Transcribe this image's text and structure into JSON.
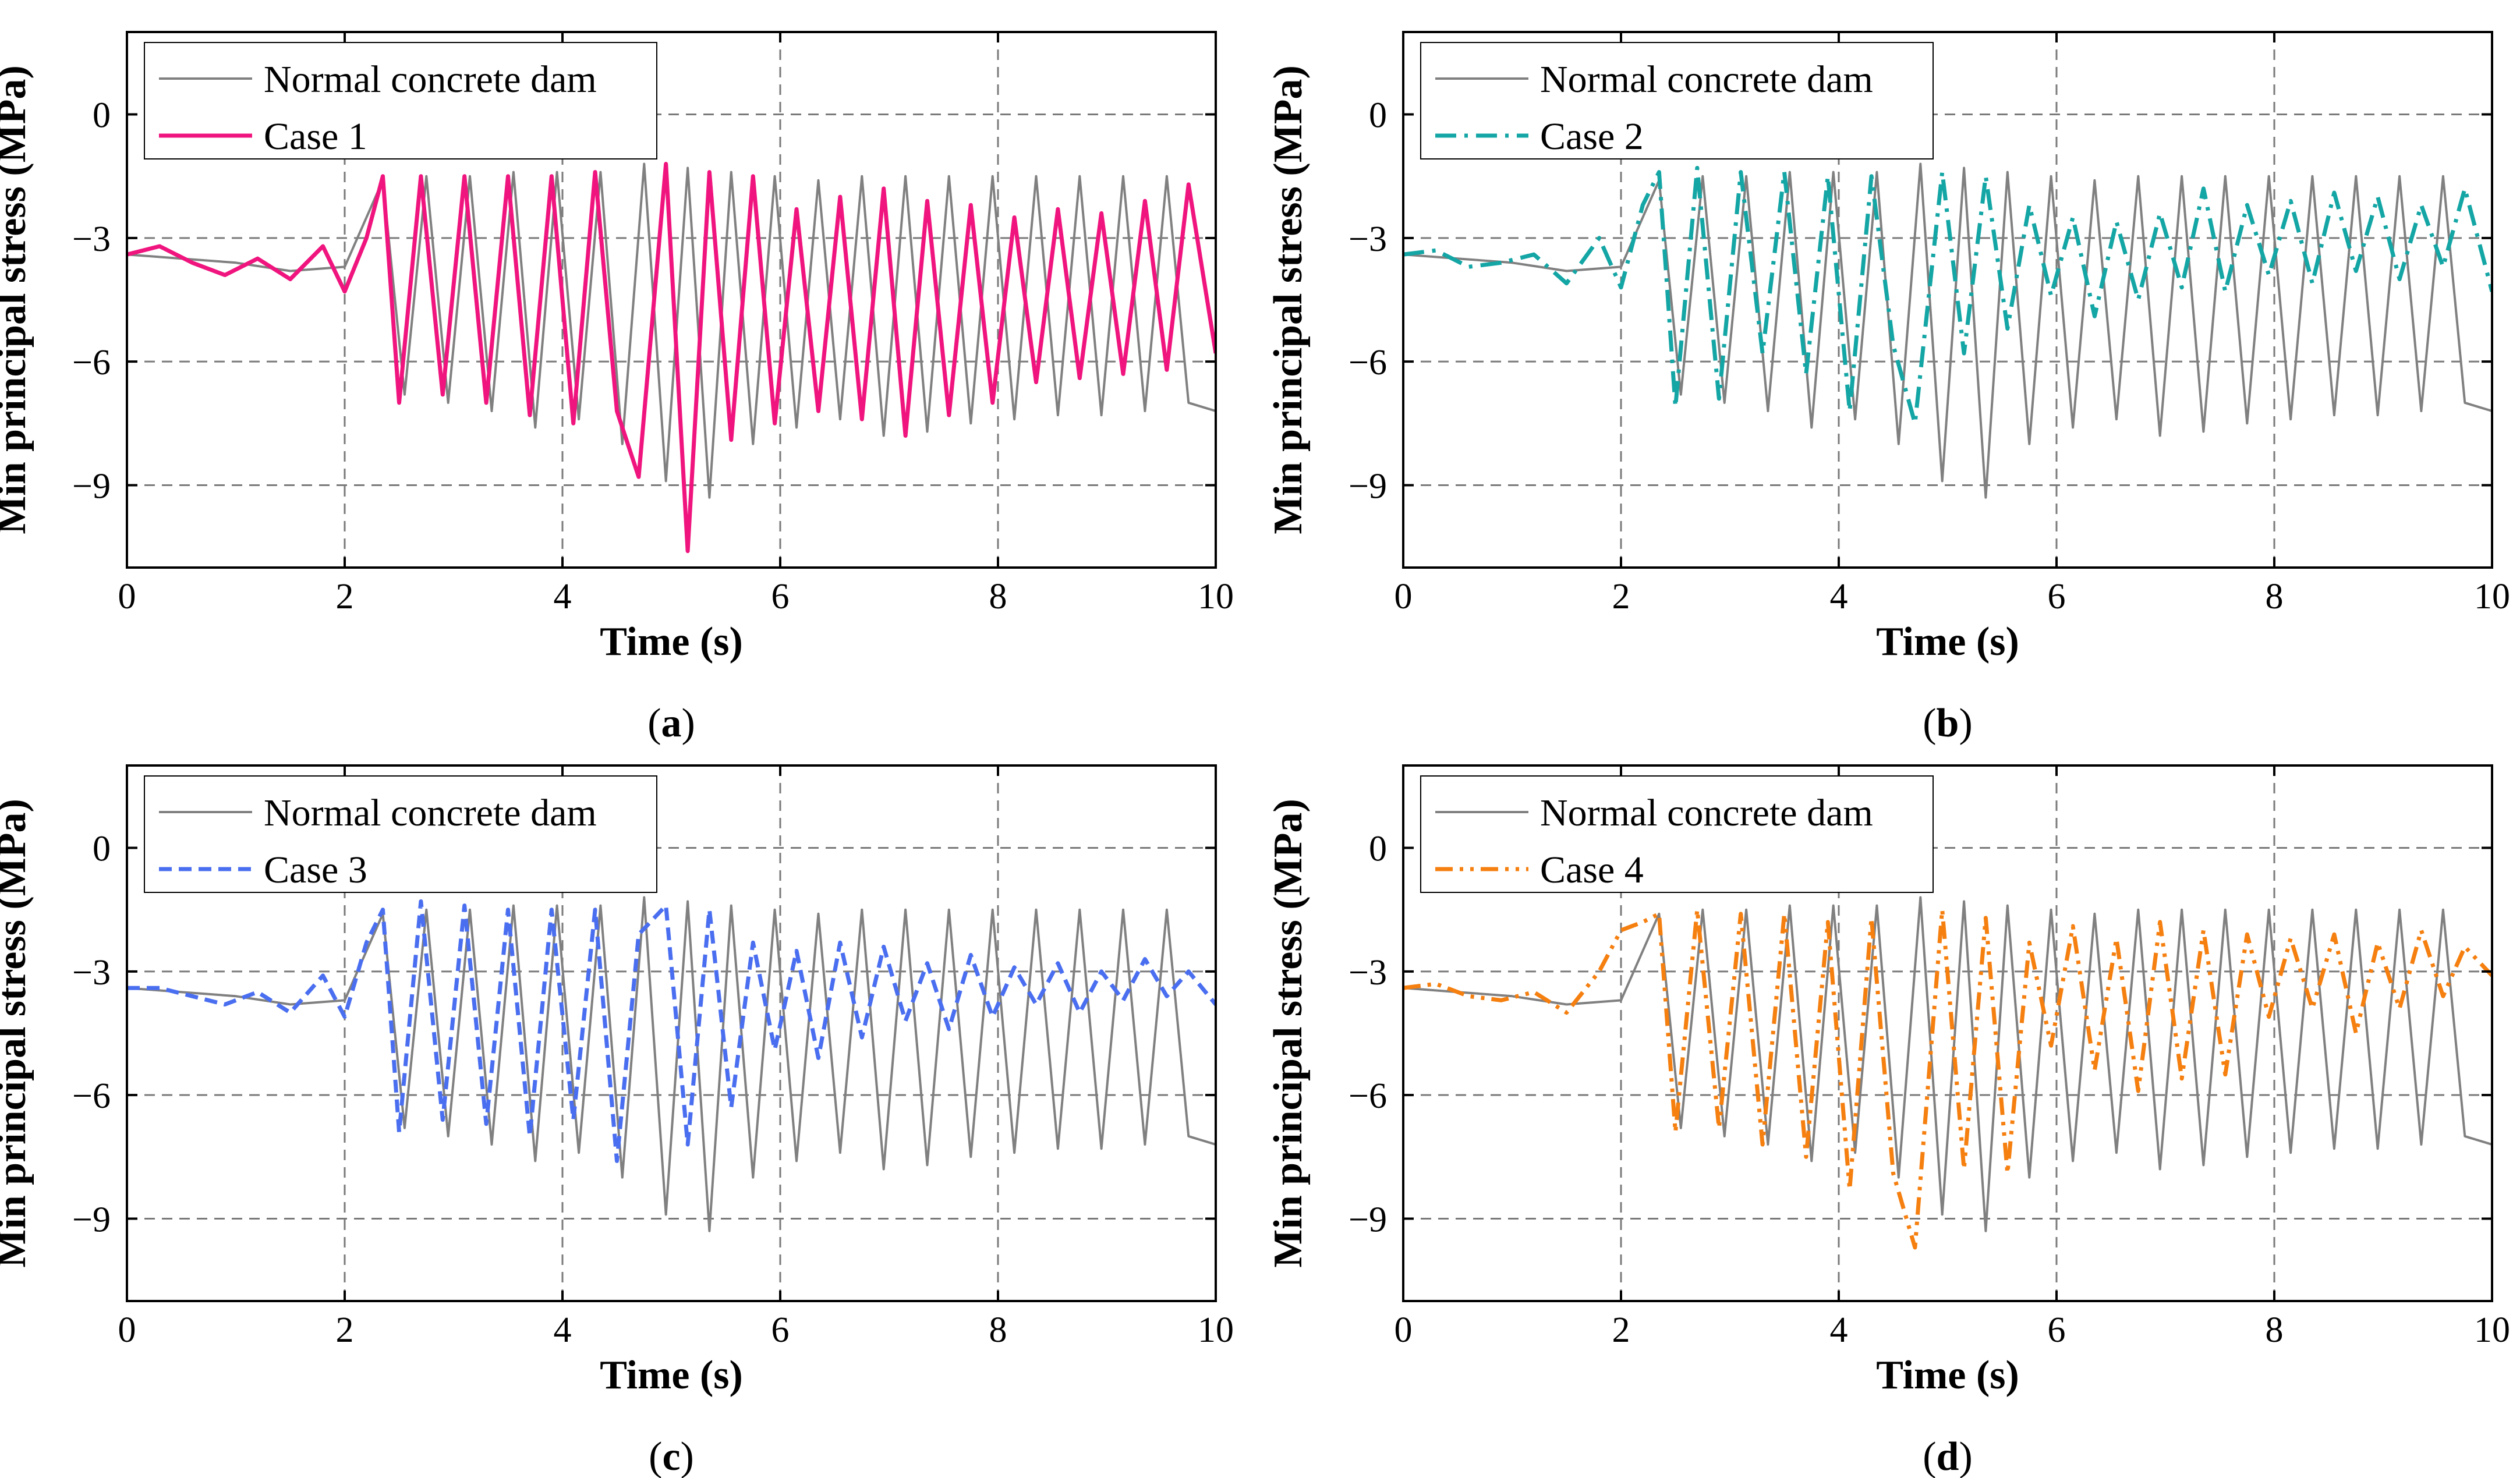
{
  "figure": {
    "shared": {
      "xlabel": "Time (s)",
      "ylabel": "Min principal stress (MPa)",
      "xlim": [
        0,
        10
      ],
      "ylim": [
        -11,
        2
      ],
      "xticks": [
        0,
        2,
        4,
        6,
        8,
        10
      ],
      "yticks": [
        0,
        -3,
        -6,
        -9
      ],
      "grid": "dashed at ticks",
      "legend_position": "top-left"
    }
  },
  "chart_data": [
    {
      "type": "line",
      "panel_label": "a",
      "xlabel": "Time (s)",
      "ylabel": "Min principal stress (MPa)",
      "xlim": [
        0,
        10
      ],
      "ylim": [
        -11,
        2
      ],
      "xtick_labels": [
        "0",
        "2",
        "4",
        "6",
        "8",
        "10"
      ],
      "ytick_labels": [
        "0",
        "-3",
        "-6",
        "-9"
      ],
      "legend": [
        "Normal concrete dam",
        "Case 1"
      ],
      "series": [
        {
          "name": "Normal concrete dam",
          "style": "grey-fine",
          "color": "#808080",
          "x": [
            0,
            0.5,
            1.0,
            1.5,
            2.0,
            2.2,
            2.35,
            2.55,
            2.75,
            2.95,
            3.15,
            3.35,
            3.55,
            3.75,
            3.95,
            4.15,
            4.35,
            4.55,
            4.75,
            4.95,
            5.15,
            5.35,
            5.55,
            5.75,
            5.95,
            6.15,
            6.35,
            6.55,
            6.75,
            6.95,
            7.15,
            7.35,
            7.55,
            7.75,
            7.95,
            8.15,
            8.35,
            8.55,
            8.75,
            8.95,
            9.15,
            9.35,
            9.55,
            9.75,
            10.0
          ],
          "y": [
            -3.4,
            -3.5,
            -3.6,
            -3.8,
            -3.7,
            -2.5,
            -1.6,
            -6.8,
            -1.5,
            -7.0,
            -1.5,
            -7.2,
            -1.4,
            -7.6,
            -1.4,
            -7.4,
            -1.4,
            -8.0,
            -1.2,
            -8.9,
            -1.3,
            -9.3,
            -1.4,
            -8.0,
            -1.5,
            -7.6,
            -1.6,
            -7.4,
            -1.5,
            -7.8,
            -1.5,
            -7.7,
            -1.5,
            -7.5,
            -1.5,
            -7.4,
            -1.5,
            -7.3,
            -1.5,
            -7.3,
            -1.5,
            -7.2,
            -1.5,
            -7.0,
            -7.2
          ]
        },
        {
          "name": "Case 1",
          "style": "solid",
          "color": "#f0147e",
          "x": [
            0,
            0.3,
            0.6,
            0.9,
            1.2,
            1.5,
            1.8,
            2.0,
            2.2,
            2.35,
            2.5,
            2.7,
            2.9,
            3.1,
            3.3,
            3.5,
            3.7,
            3.9,
            4.1,
            4.3,
            4.5,
            4.7,
            4.95,
            5.15,
            5.35,
            5.55,
            5.75,
            5.95,
            6.15,
            6.35,
            6.55,
            6.75,
            6.95,
            7.15,
            7.35,
            7.55,
            7.75,
            7.95,
            8.15,
            8.35,
            8.55,
            8.75,
            8.95,
            9.15,
            9.35,
            9.55,
            9.75,
            10.0
          ],
          "y": [
            -3.4,
            -3.2,
            -3.6,
            -3.9,
            -3.5,
            -4.0,
            -3.2,
            -4.3,
            -3.0,
            -1.5,
            -7.0,
            -1.5,
            -6.8,
            -1.5,
            -7.0,
            -1.5,
            -7.3,
            -1.5,
            -7.5,
            -1.4,
            -7.2,
            -8.8,
            -1.2,
            -10.6,
            -1.4,
            -7.9,
            -1.5,
            -7.5,
            -2.3,
            -7.2,
            -2.0,
            -7.4,
            -1.8,
            -7.8,
            -2.1,
            -7.3,
            -2.2,
            -7.0,
            -2.5,
            -6.5,
            -2.3,
            -6.4,
            -2.4,
            -6.3,
            -2.1,
            -6.2,
            -1.7,
            -5.8
          ]
        }
      ]
    },
    {
      "type": "line",
      "panel_label": "b",
      "xlabel": "Time (s)",
      "ylabel": "Min principal stress (MPa)",
      "xlim": [
        0,
        10
      ],
      "ylim": [
        -11,
        2
      ],
      "xtick_labels": [
        "0",
        "2",
        "4",
        "6",
        "8",
        "10"
      ],
      "ytick_labels": [
        "0",
        "-3",
        "-6",
        "-9"
      ],
      "legend": [
        "Normal concrete dam",
        "Case 2"
      ],
      "series": [
        {
          "name": "Normal concrete dam",
          "style": "grey-fine",
          "color": "#808080",
          "x": [
            0,
            0.5,
            1.0,
            1.5,
            2.0,
            2.2,
            2.35,
            2.55,
            2.75,
            2.95,
            3.15,
            3.35,
            3.55,
            3.75,
            3.95,
            4.15,
            4.35,
            4.55,
            4.75,
            4.95,
            5.15,
            5.35,
            5.55,
            5.75,
            5.95,
            6.15,
            6.35,
            6.55,
            6.75,
            6.95,
            7.15,
            7.35,
            7.55,
            7.75,
            7.95,
            8.15,
            8.35,
            8.55,
            8.75,
            8.95,
            9.15,
            9.35,
            9.55,
            9.75,
            10.0
          ],
          "y": [
            -3.4,
            -3.5,
            -3.6,
            -3.8,
            -3.7,
            -2.5,
            -1.6,
            -6.8,
            -1.5,
            -7.0,
            -1.5,
            -7.2,
            -1.4,
            -7.6,
            -1.4,
            -7.4,
            -1.4,
            -8.0,
            -1.2,
            -8.9,
            -1.3,
            -9.3,
            -1.4,
            -8.0,
            -1.5,
            -7.6,
            -1.6,
            -7.4,
            -1.5,
            -7.8,
            -1.5,
            -7.7,
            -1.5,
            -7.5,
            -1.5,
            -7.4,
            -1.5,
            -7.3,
            -1.5,
            -7.3,
            -1.5,
            -7.2,
            -1.5,
            -7.0,
            -7.2
          ]
        },
        {
          "name": "Case 2",
          "style": "dash-dot",
          "color": "#14a5a5",
          "x": [
            0,
            0.3,
            0.6,
            0.9,
            1.2,
            1.5,
            1.8,
            2.0,
            2.2,
            2.35,
            2.5,
            2.7,
            2.9,
            3.1,
            3.3,
            3.5,
            3.7,
            3.9,
            4.1,
            4.3,
            4.5,
            4.7,
            4.95,
            5.15,
            5.35,
            5.55,
            5.75,
            5.95,
            6.15,
            6.35,
            6.55,
            6.75,
            6.95,
            7.15,
            7.35,
            7.55,
            7.75,
            7.95,
            8.15,
            8.35,
            8.55,
            8.75,
            8.95,
            9.15,
            9.35,
            9.55,
            9.75,
            10.0
          ],
          "y": [
            -3.4,
            -3.3,
            -3.7,
            -3.6,
            -3.4,
            -4.1,
            -3.0,
            -4.2,
            -2.2,
            -1.4,
            -7.1,
            -1.3,
            -6.9,
            -1.4,
            -5.8,
            -1.4,
            -6.3,
            -1.5,
            -7.2,
            -1.5,
            -5.6,
            -7.5,
            -1.4,
            -5.8,
            -1.5,
            -5.2,
            -2.2,
            -4.4,
            -2.5,
            -4.9,
            -2.6,
            -4.5,
            -2.4,
            -4.2,
            -1.8,
            -4.3,
            -2.2,
            -3.9,
            -2.1,
            -4.1,
            -1.9,
            -3.8,
            -2.0,
            -4.0,
            -2.2,
            -3.7,
            -1.8,
            -4.3
          ]
        }
      ]
    },
    {
      "type": "line",
      "panel_label": "c",
      "xlabel": "Time (s)",
      "ylabel": "Min principal stress (MPa)",
      "xlim": [
        0,
        10
      ],
      "ylim": [
        -11,
        2
      ],
      "xtick_labels": [
        "0",
        "2",
        "4",
        "6",
        "8",
        "10"
      ],
      "ytick_labels": [
        "0",
        "-3",
        "-6",
        "-9"
      ],
      "legend": [
        "Normal concrete dam",
        "Case 3"
      ],
      "series": [
        {
          "name": "Normal concrete dam",
          "style": "grey-fine",
          "color": "#808080",
          "x": [
            0,
            0.5,
            1.0,
            1.5,
            2.0,
            2.2,
            2.35,
            2.55,
            2.75,
            2.95,
            3.15,
            3.35,
            3.55,
            3.75,
            3.95,
            4.15,
            4.35,
            4.55,
            4.75,
            4.95,
            5.15,
            5.35,
            5.55,
            5.75,
            5.95,
            6.15,
            6.35,
            6.55,
            6.75,
            6.95,
            7.15,
            7.35,
            7.55,
            7.75,
            7.95,
            8.15,
            8.35,
            8.55,
            8.75,
            8.95,
            9.15,
            9.35,
            9.55,
            9.75,
            10.0
          ],
          "y": [
            -3.4,
            -3.5,
            -3.6,
            -3.8,
            -3.7,
            -2.5,
            -1.6,
            -6.8,
            -1.5,
            -7.0,
            -1.5,
            -7.2,
            -1.4,
            -7.6,
            -1.4,
            -7.4,
            -1.4,
            -8.0,
            -1.2,
            -8.9,
            -1.3,
            -9.3,
            -1.4,
            -8.0,
            -1.5,
            -7.6,
            -1.6,
            -7.4,
            -1.5,
            -7.8,
            -1.5,
            -7.7,
            -1.5,
            -7.5,
            -1.5,
            -7.4,
            -1.5,
            -7.3,
            -1.5,
            -7.3,
            -1.5,
            -7.2,
            -1.5,
            -7.0,
            -7.2
          ]
        },
        {
          "name": "Case 3",
          "style": "dashed",
          "color": "#4a6ef0",
          "x": [
            0,
            0.3,
            0.6,
            0.9,
            1.2,
            1.5,
            1.8,
            2.0,
            2.2,
            2.35,
            2.5,
            2.7,
            2.9,
            3.1,
            3.3,
            3.5,
            3.7,
            3.9,
            4.1,
            4.3,
            4.5,
            4.7,
            4.95,
            5.15,
            5.35,
            5.55,
            5.75,
            5.95,
            6.15,
            6.35,
            6.55,
            6.75,
            6.95,
            7.15,
            7.35,
            7.55,
            7.75,
            7.95,
            8.15,
            8.35,
            8.55,
            8.75,
            8.95,
            9.15,
            9.35,
            9.55,
            9.75,
            10.0
          ],
          "y": [
            -3.4,
            -3.4,
            -3.6,
            -3.8,
            -3.5,
            -4.0,
            -3.1,
            -4.1,
            -2.3,
            -1.5,
            -6.9,
            -1.3,
            -6.6,
            -1.4,
            -6.7,
            -1.5,
            -7.0,
            -1.5,
            -6.6,
            -1.5,
            -7.6,
            -2.1,
            -1.4,
            -7.2,
            -1.5,
            -6.3,
            -2.3,
            -4.9,
            -2.5,
            -5.1,
            -2.3,
            -4.6,
            -2.4,
            -4.2,
            -2.8,
            -4.4,
            -2.6,
            -4.1,
            -2.9,
            -3.8,
            -2.8,
            -4.0,
            -3.0,
            -3.7,
            -2.7,
            -3.6,
            -3.0,
            -3.8
          ]
        }
      ]
    },
    {
      "type": "line",
      "panel_label": "d",
      "xlabel": "Time (s)",
      "ylabel": "Min principal stress (MPa)",
      "xlim": [
        0,
        10
      ],
      "ylim": [
        -11,
        2
      ],
      "xtick_labels": [
        "0",
        "2",
        "4",
        "6",
        "8",
        "10"
      ],
      "ytick_labels": [
        "0",
        "-3",
        "-6",
        "-9"
      ],
      "legend": [
        "Normal concrete dam",
        "Case 4"
      ],
      "series": [
        {
          "name": "Normal concrete dam",
          "style": "grey-fine",
          "color": "#808080",
          "x": [
            0,
            0.5,
            1.0,
            1.5,
            2.0,
            2.2,
            2.35,
            2.55,
            2.75,
            2.95,
            3.15,
            3.35,
            3.55,
            3.75,
            3.95,
            4.15,
            4.35,
            4.55,
            4.75,
            4.95,
            5.15,
            5.35,
            5.55,
            5.75,
            5.95,
            6.15,
            6.35,
            6.55,
            6.75,
            6.95,
            7.15,
            7.35,
            7.55,
            7.75,
            7.95,
            8.15,
            8.35,
            8.55,
            8.75,
            8.95,
            9.15,
            9.35,
            9.55,
            9.75,
            10.0
          ],
          "y": [
            -3.4,
            -3.5,
            -3.6,
            -3.8,
            -3.7,
            -2.5,
            -1.6,
            -6.8,
            -1.5,
            -7.0,
            -1.5,
            -7.2,
            -1.4,
            -7.6,
            -1.4,
            -7.4,
            -1.4,
            -8.0,
            -1.2,
            -8.9,
            -1.3,
            -9.3,
            -1.4,
            -8.0,
            -1.5,
            -7.6,
            -1.6,
            -7.4,
            -1.5,
            -7.8,
            -1.5,
            -7.7,
            -1.5,
            -7.5,
            -1.5,
            -7.4,
            -1.5,
            -7.3,
            -1.5,
            -7.3,
            -1.5,
            -7.2,
            -1.5,
            -7.0,
            -7.2
          ]
        },
        {
          "name": "Case 4",
          "style": "dash-dot-dot",
          "color": "#f57f0f",
          "x": [
            0,
            0.3,
            0.6,
            0.9,
            1.2,
            1.5,
            1.8,
            2.0,
            2.2,
            2.35,
            2.5,
            2.7,
            2.9,
            3.1,
            3.3,
            3.5,
            3.7,
            3.9,
            4.1,
            4.3,
            4.5,
            4.7,
            4.95,
            5.15,
            5.35,
            5.55,
            5.75,
            5.95,
            6.15,
            6.35,
            6.55,
            6.75,
            6.95,
            7.15,
            7.35,
            7.55,
            7.75,
            7.95,
            8.15,
            8.35,
            8.55,
            8.75,
            8.95,
            9.15,
            9.35,
            9.55,
            9.75,
            10.0
          ],
          "y": [
            -3.4,
            -3.3,
            -3.6,
            -3.7,
            -3.5,
            -4.0,
            -3.0,
            -2.0,
            -1.8,
            -1.6,
            -6.9,
            -1.5,
            -6.8,
            -1.6,
            -7.2,
            -1.6,
            -7.5,
            -1.8,
            -8.3,
            -1.7,
            -7.9,
            -9.7,
            -1.5,
            -7.8,
            -1.7,
            -7.9,
            -2.3,
            -4.8,
            -1.9,
            -5.4,
            -2.2,
            -5.9,
            -1.8,
            -5.6,
            -2.0,
            -5.5,
            -2.1,
            -4.1,
            -2.2,
            -3.9,
            -2.1,
            -4.5,
            -2.3,
            -3.9,
            -2.0,
            -3.6,
            -2.4,
            -3.1
          ]
        }
      ]
    }
  ]
}
